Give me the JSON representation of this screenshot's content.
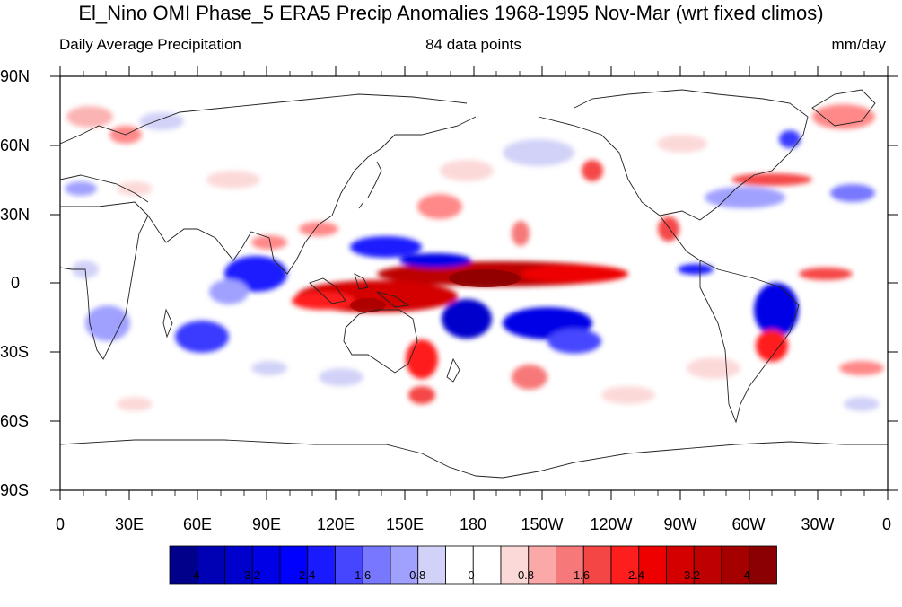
{
  "title": "El_Nino OMI Phase_5 ERA5 Precip Anomalies 1968-1995 Nov-Mar (wrt fixed climos)",
  "subtitle": {
    "left": "Daily Average Precipitation",
    "center": "84 data points",
    "right": "mm/day"
  },
  "axes": {
    "lat_labels": [
      "90N",
      "60N",
      "30N",
      "0",
      "30S",
      "60S",
      "90S"
    ],
    "lon_labels": [
      "0",
      "30E",
      "60E",
      "90E",
      "120E",
      "150E",
      "180",
      "150W",
      "120W",
      "90W",
      "60W",
      "30W",
      "0"
    ]
  },
  "colorbar": {
    "colors": [
      "#00008b",
      "#0000b4",
      "#0000cd",
      "#0000e6",
      "#0000ff",
      "#1a1aff",
      "#4646ff",
      "#7878ff",
      "#a0a0ff",
      "#d2d2f8",
      "#ffffff",
      "#ffffff",
      "#fcd9d9",
      "#fba8a8",
      "#f77878",
      "#f54646",
      "#ff1e1e",
      "#ee0000",
      "#d40000",
      "#bd0000",
      "#a50000",
      "#8b0000"
    ],
    "labels": [
      "-4",
      "-3.2",
      "-2.4",
      "-1.6",
      "-0.8",
      "0",
      "0.8",
      "1.6",
      "2.4",
      "3.2",
      "4"
    ]
  }
}
